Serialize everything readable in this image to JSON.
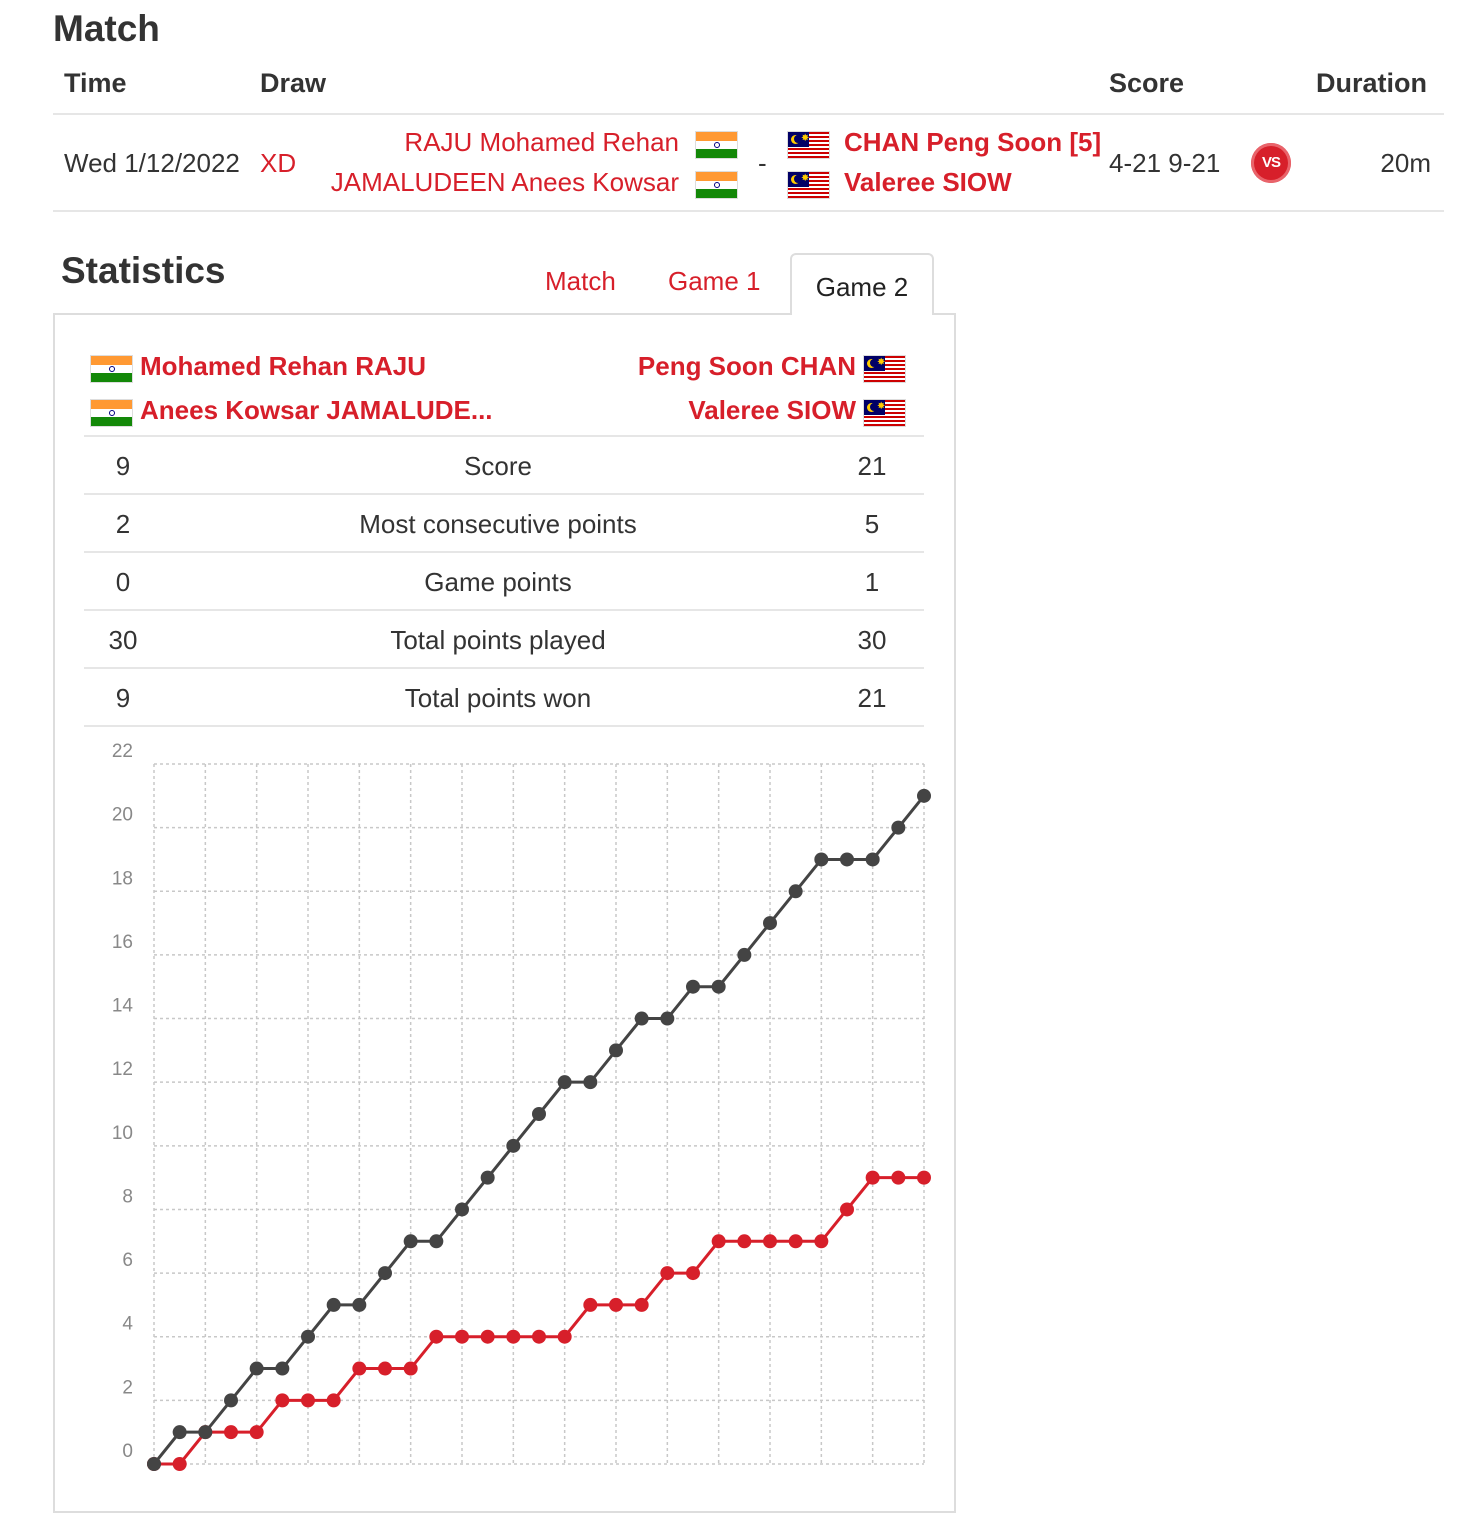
{
  "match": {
    "title": "Match",
    "headers": {
      "time": "Time",
      "draw": "Draw",
      "score": "Score",
      "duration": "Duration"
    },
    "row": {
      "time": "Wed 1/12/2022",
      "draw": "XD",
      "team1": [
        "RAJU Mohamed Rehan",
        "JAMALUDEEN Anees Kowsar"
      ],
      "separator": "-",
      "team2": [
        "CHAN Peng Soon [5]",
        "Valeree SIOW"
      ],
      "score": "4-21 9-21",
      "vs_label": "VS",
      "duration": "20m"
    }
  },
  "statistics": {
    "title": "Statistics",
    "tabs": [
      "Match",
      "Game 1",
      "Game 2"
    ],
    "active_tab": "Game 2",
    "team1": [
      "Mohamed Rehan RAJU",
      "Anees Kowsar JAMALUDE..."
    ],
    "team2": [
      "Peng Soon CHAN",
      "Valeree SIOW"
    ],
    "rows": [
      {
        "left": "9",
        "label": "Score",
        "right": "21"
      },
      {
        "left": "2",
        "label": "Most consecutive points",
        "right": "5"
      },
      {
        "left": "0",
        "label": "Game points",
        "right": "1"
      },
      {
        "left": "30",
        "label": "Total points played",
        "right": "30"
      },
      {
        "left": "9",
        "label": "Total points won",
        "right": "21"
      }
    ]
  },
  "colors": {
    "accent": "#d71f2a",
    "series_team1": "#d71f2a",
    "series_team2": "#444444"
  },
  "chart_data": {
    "type": "line",
    "title": "",
    "xlabel": "",
    "ylabel": "",
    "ylim": [
      0,
      22
    ],
    "yticks": [
      0,
      2,
      4,
      6,
      8,
      10,
      12,
      14,
      16,
      18,
      20,
      22
    ],
    "x": [
      0,
      1,
      2,
      3,
      4,
      5,
      6,
      7,
      8,
      9,
      10,
      11,
      12,
      13,
      14,
      15,
      16,
      17,
      18,
      19,
      20,
      21,
      22,
      23,
      24,
      25,
      26,
      27,
      28,
      29,
      30
    ],
    "series": [
      {
        "name": "Mohamed Rehan RAJU / Anees Kowsar JAMALUDEEN",
        "color": "#d71f2a",
        "values": [
          0,
          0,
          1,
          1,
          1,
          2,
          2,
          2,
          3,
          3,
          3,
          4,
          4,
          4,
          4,
          4,
          4,
          5,
          5,
          5,
          6,
          6,
          7,
          7,
          7,
          7,
          7,
          8,
          9,
          9,
          9
        ]
      },
      {
        "name": "Peng Soon CHAN / Valeree SIOW",
        "color": "#444444",
        "values": [
          0,
          1,
          1,
          2,
          3,
          3,
          4,
          5,
          5,
          6,
          7,
          7,
          8,
          9,
          10,
          11,
          12,
          12,
          13,
          14,
          14,
          15,
          15,
          16,
          17,
          18,
          19,
          19,
          19,
          20,
          21
        ]
      }
    ]
  }
}
